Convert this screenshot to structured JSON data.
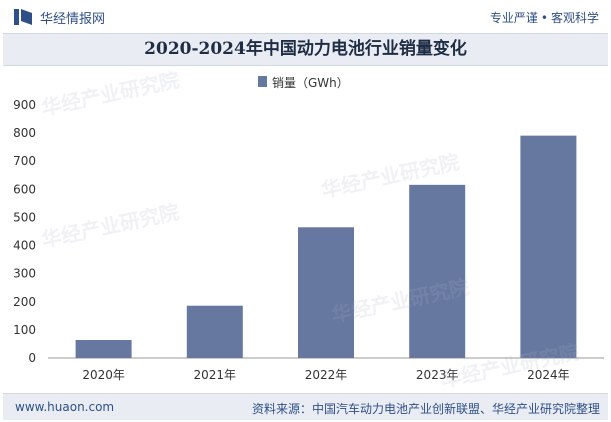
{
  "header": {
    "brand": "华经情报网",
    "slogan_left": "专业严谨",
    "slogan_sep": "•",
    "slogan_right": "客观科学"
  },
  "title": "2020-2024年中国动力电池行业销量变化",
  "footer": {
    "site": "www.huaon.com",
    "source": "资料来源：中国汽车动力电池产业创新联盟、华经产业研究院整理"
  },
  "watermark": "华经产业研究院",
  "colors": {
    "bar": "#6678a0",
    "accent": "#2f4f87",
    "axis": "#999999"
  },
  "chart_data": {
    "type": "bar",
    "categories": [
      "2020年",
      "2021年",
      "2022年",
      "2023年",
      "2024年"
    ],
    "series": [
      {
        "name": "销量（GWh）",
        "values": [
          64,
          186,
          465,
          616,
          791
        ]
      }
    ],
    "ylim": [
      0,
      900
    ],
    "yticks": [
      0,
      100,
      200,
      300,
      400,
      500,
      600,
      700,
      800,
      900
    ],
    "grid": false,
    "legend_position": "top-center"
  }
}
